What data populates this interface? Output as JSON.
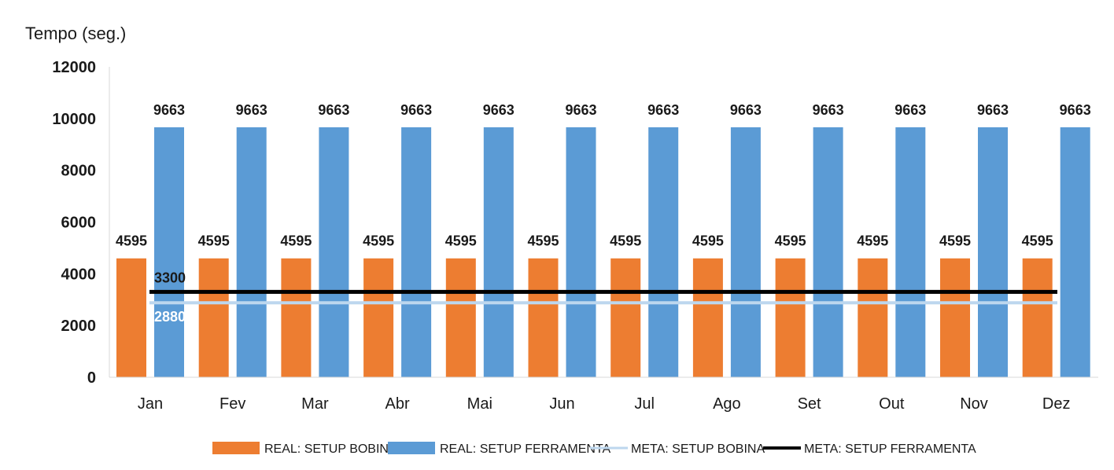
{
  "chart_data": {
    "type": "bar",
    "ylabel": "Tempo (seg.)",
    "ylim": [
      0,
      12000
    ],
    "yticks": [
      0,
      2000,
      4000,
      6000,
      8000,
      10000,
      12000
    ],
    "grid": false,
    "legend_position": "bottom",
    "categories": [
      "Jan",
      "Fev",
      "Mar",
      "Abr",
      "Mai",
      "Jun",
      "Jul",
      "Ago",
      "Set",
      "Out",
      "Nov",
      "Dez"
    ],
    "series": [
      {
        "name": "REAL: SETUP BOBINA",
        "kind": "bar",
        "color": "#ED7D31",
        "values": [
          4595,
          4595,
          4595,
          4595,
          4595,
          4595,
          4595,
          4595,
          4595,
          4595,
          4595,
          4595
        ]
      },
      {
        "name": "REAL: SETUP FERRAMENTA",
        "kind": "bar",
        "color": "#5B9BD5",
        "values": [
          9663,
          9663,
          9663,
          9663,
          9663,
          9663,
          9663,
          9663,
          9663,
          9663,
          9663,
          9663
        ]
      },
      {
        "name": "META: SETUP BOBINA",
        "kind": "line",
        "color": "#BDD7EE",
        "values": [
          2880,
          2880,
          2880,
          2880,
          2880,
          2880,
          2880,
          2880,
          2880,
          2880,
          2880,
          2880
        ]
      },
      {
        "name": "META: SETUP FERRAMENTA",
        "kind": "line",
        "color": "#000000",
        "values": [
          3300,
          3300,
          3300,
          3300,
          3300,
          3300,
          3300,
          3300,
          3300,
          3300,
          3300,
          3300
        ]
      }
    ],
    "line_labels": [
      {
        "series": 3,
        "text": "3300"
      },
      {
        "series": 2,
        "text": "2880"
      }
    ]
  }
}
